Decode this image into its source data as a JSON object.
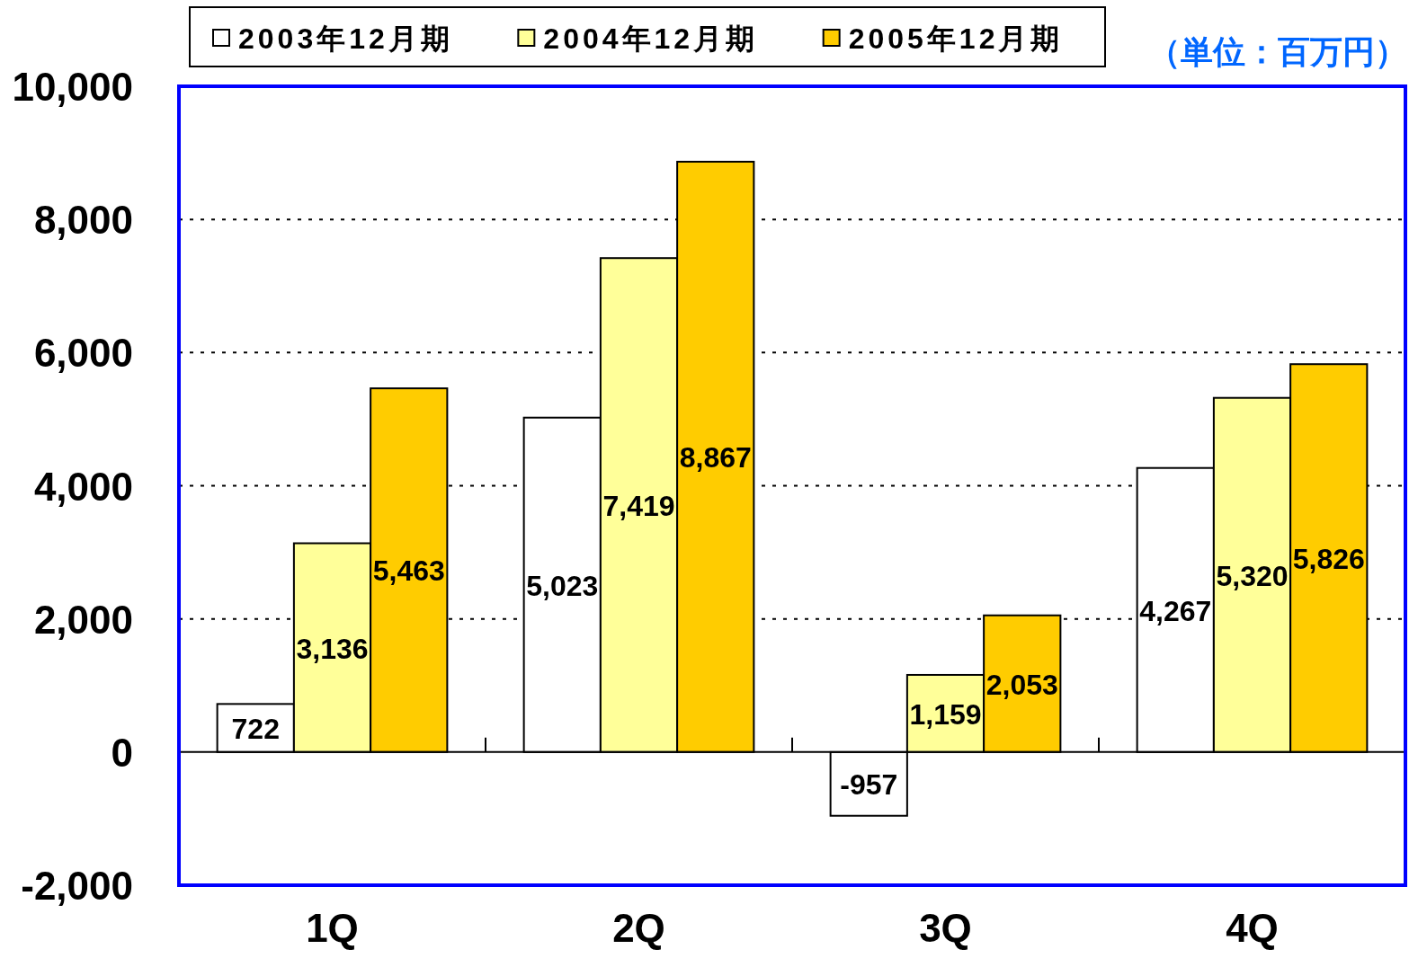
{
  "chart_data": {
    "type": "bar",
    "categories": [
      "1Q",
      "2Q",
      "3Q",
      "4Q"
    ],
    "series": [
      {
        "name": "2003年12月期",
        "color": "#ffffff",
        "values": [
          722,
          5023,
          -957,
          4267
        ],
        "value_labels": [
          "722",
          "5,023",
          "-957",
          "4,267"
        ]
      },
      {
        "name": "2004年12月期",
        "color": "#ffff99",
        "values": [
          3136,
          7419,
          1159,
          5320
        ],
        "value_labels": [
          "3,136",
          "7,419",
          "1,159",
          "5,320"
        ]
      },
      {
        "name": "2005年12月期",
        "color": "#ffcc00",
        "values": [
          5463,
          8867,
          2053,
          5826
        ],
        "value_labels": [
          "5,463",
          "8,867",
          "2,053",
          "5,826"
        ]
      }
    ],
    "ylim": [
      -2000,
      10000
    ],
    "yticks": [
      {
        "value": -2000,
        "label": "-2,000"
      },
      0,
      {
        "value": 2000,
        "label": "2,000"
      },
      {
        "value": 4000,
        "label": "4,000"
      },
      {
        "value": 6000,
        "label": "6,000"
      },
      {
        "value": 8000,
        "label": "8,000"
      },
      {
        "value": 10000,
        "label": "10,000"
      }
    ],
    "grid": "y",
    "legend": "top",
    "annotations": [
      "（単位：百万円）"
    ]
  }
}
